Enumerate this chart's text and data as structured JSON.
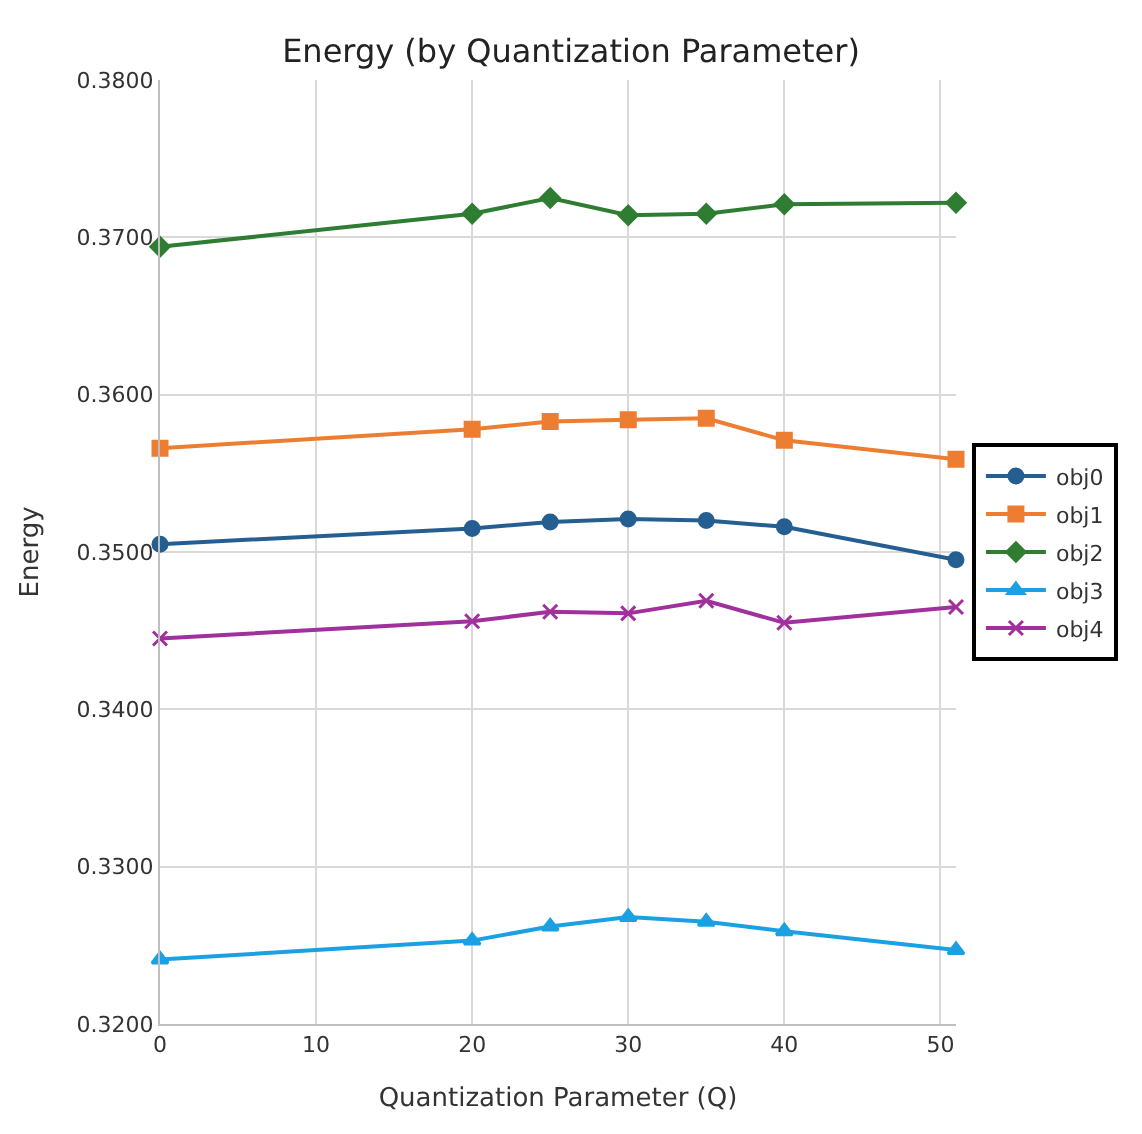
{
  "chart_data": {
    "type": "line",
    "title": "Energy (by Quantization Parameter)",
    "xlabel": "Quantization Parameter (Q)",
    "ylabel": "Energy",
    "x": [
      0,
      20,
      25,
      30,
      35,
      40,
      51
    ],
    "series": [
      {
        "name": "obj0",
        "color": "#255e91",
        "marker": "circle",
        "values": [
          0.3505,
          0.3515,
          0.3519,
          0.3521,
          0.352,
          0.3516,
          0.3495
        ]
      },
      {
        "name": "obj1",
        "color": "#ed7d31",
        "marker": "square",
        "values": [
          0.3566,
          0.3578,
          0.3583,
          0.3584,
          0.3585,
          0.3571,
          0.3559
        ]
      },
      {
        "name": "obj2",
        "color": "#2e7d32",
        "marker": "diamond",
        "values": [
          0.3694,
          0.3715,
          0.3725,
          0.3714,
          0.3715,
          0.3721,
          0.3722
        ]
      },
      {
        "name": "obj3",
        "color": "#1ba1e2",
        "marker": "triangle",
        "values": [
          0.3241,
          0.3253,
          0.3262,
          0.3268,
          0.3265,
          0.3259,
          0.3247
        ]
      },
      {
        "name": "obj4",
        "color": "#a0309c",
        "marker": "cross",
        "values": [
          0.3445,
          0.3456,
          0.3462,
          0.3461,
          0.3469,
          0.3455,
          0.3465
        ]
      }
    ],
    "xlim": [
      0,
      51
    ],
    "xticks": [
      0,
      10,
      20,
      30,
      40,
      50
    ],
    "ylim": [
      0.32,
      0.38
    ],
    "yticks": [
      {
        "value": 0.32,
        "label": "0.3200"
      },
      {
        "value": 0.33,
        "label": "0.3300"
      },
      {
        "value": 0.34,
        "label": "0.3400"
      },
      {
        "value": 0.35,
        "label": "0.3500"
      },
      {
        "value": 0.36,
        "label": "0.3600"
      },
      {
        "value": 0.37,
        "label": "0.3700"
      },
      {
        "value": 0.38,
        "label": "0.3800"
      }
    ],
    "grid": true,
    "legend": "right",
    "line_style": "solid"
  }
}
